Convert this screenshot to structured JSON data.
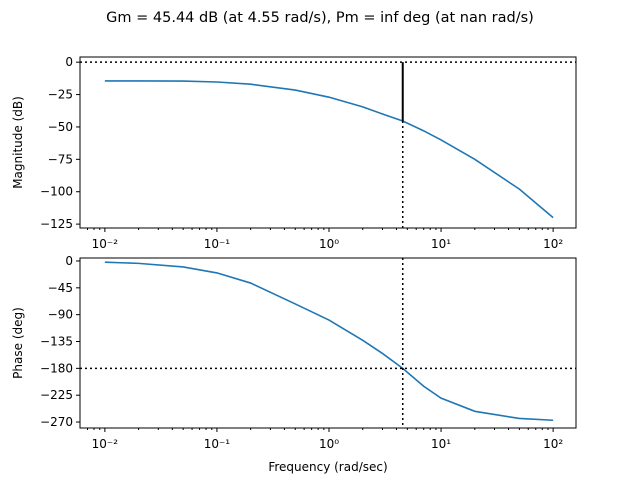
{
  "title": "Gm = 45.44 dB (at 4.55 rad/s), Pm = inf deg (at nan rad/s)",
  "xlabel": "Frequency (rad/sec)",
  "colors": {
    "series": "#1f77b4",
    "guides": "#000000"
  },
  "chart_data": [
    {
      "type": "line",
      "ylabel": "Magnitude (dB)",
      "xscale": "log",
      "xlim": [
        0.006,
        160
      ],
      "ylim": [
        -128,
        4
      ],
      "xticks": [
        0.01,
        0.1,
        1,
        10,
        100
      ],
      "yticks": [
        0,
        -25,
        -50,
        -75,
        -100,
        -125
      ],
      "ytick_labels": [
        "0",
        "−25",
        "−50",
        "−75",
        "−100",
        "−125"
      ],
      "x": [
        0.01,
        0.02,
        0.05,
        0.1,
        0.2,
        0.5,
        1,
        2,
        3,
        4.55,
        7,
        10,
        20,
        50,
        100
      ],
      "y": [
        -14.5,
        -14.5,
        -14.6,
        -15.3,
        -17,
        -21.5,
        -27,
        -34.5,
        -40,
        -45.4,
        -53,
        -60,
        -75,
        -98,
        -120
      ],
      "hlines": [
        0
      ],
      "vlines": [
        4.55
      ],
      "gain_margin_bar": {
        "x": 4.55,
        "from": 0,
        "to": -45.44
      }
    },
    {
      "type": "line",
      "ylabel": "Phase (deg)",
      "xscale": "log",
      "xlim": [
        0.006,
        160
      ],
      "ylim": [
        -280,
        5
      ],
      "xticks": [
        0.01,
        0.1,
        1,
        10,
        100
      ],
      "yticks": [
        0,
        -45,
        -90,
        -135,
        -180,
        -225,
        -270
      ],
      "ytick_labels": [
        "0",
        "−45",
        "−90",
        "−135",
        "−180",
        "−225",
        "−270"
      ],
      "x": [
        0.01,
        0.02,
        0.05,
        0.1,
        0.2,
        0.5,
        1,
        2,
        3,
        4.55,
        7,
        10,
        20,
        50,
        100
      ],
      "y": [
        -2,
        -4,
        -10,
        -20,
        -37,
        -72,
        -99,
        -133,
        -155,
        -180,
        -210,
        -230,
        -252,
        -264,
        -267
      ],
      "hlines": [
        -180
      ],
      "vlines": [
        4.55
      ]
    }
  ]
}
